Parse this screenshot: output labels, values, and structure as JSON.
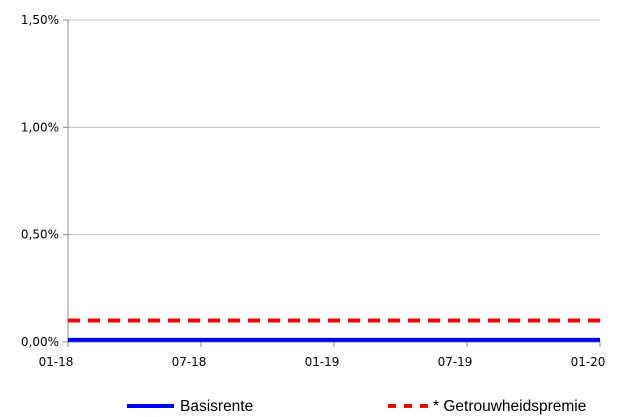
{
  "chart_data": {
    "type": "line",
    "x_ticks": [
      "01-18",
      "07-18",
      "01-19",
      "07-19",
      "01-20"
    ],
    "y_ticks": [
      "0,00%",
      "0,50%",
      "1,00%",
      "1,50%"
    ],
    "ylim": [
      0,
      1.5
    ],
    "grid": true,
    "legend_position": "bottom",
    "series": [
      {
        "name": "Basisrente",
        "color": "#0000FF",
        "style": "solid",
        "x": [
          "01-18",
          "01-20"
        ],
        "values": [
          0.01,
          0.01
        ]
      },
      {
        "name": "* Getrouwheidspremie",
        "color": "#FF0000",
        "style": "dashed",
        "x": [
          "01-18",
          "01-20"
        ],
        "values": [
          0.1,
          0.1
        ]
      }
    ]
  }
}
